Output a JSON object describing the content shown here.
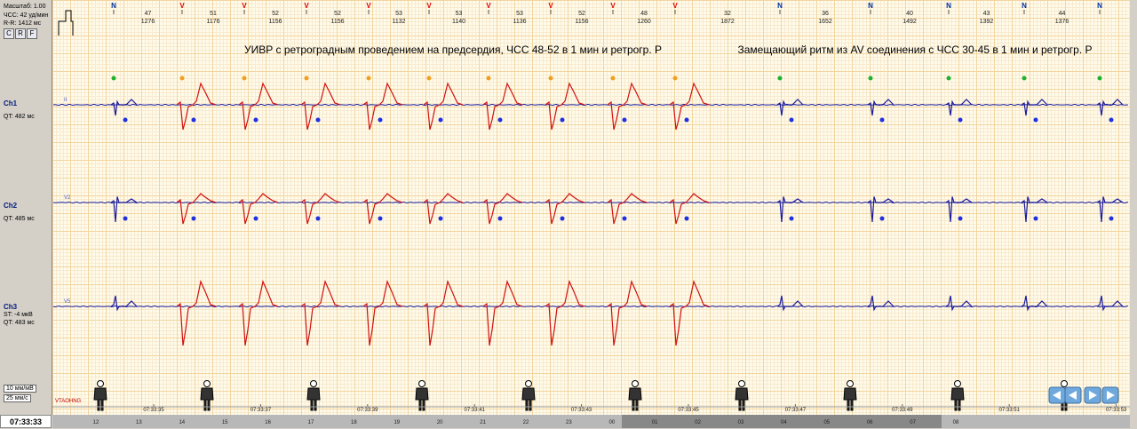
{
  "left_panel": {
    "scale": "Масштаб: 1.00",
    "hr": "ЧСС: 42 уд/мин",
    "rr": "R-R: 1412 мс",
    "buttons": [
      "C",
      "R",
      "F"
    ],
    "channels": [
      {
        "name": "Ch1",
        "lines": [
          "QT: 482 мс"
        ]
      },
      {
        "name": "Ch2",
        "lines": [
          "QT: 485 мс"
        ]
      },
      {
        "name": "Ch3",
        "lines": [
          "ST: -4 мкВ",
          "QT: 483 мс"
        ]
      }
    ],
    "gain": "10 мм/мВ",
    "speed": "25 мм/с",
    "time": "07:33:33"
  },
  "beats": {
    "labels": [
      "N",
      "V",
      "V",
      "V",
      "V",
      "V",
      "V",
      "V",
      "V",
      "V",
      "N",
      "N",
      "N",
      "N",
      "N"
    ],
    "intervals": [
      {
        "hr": "47",
        "rr": "1276"
      },
      {
        "hr": "51",
        "rr": "1176"
      },
      {
        "hr": "52",
        "rr": "1156"
      },
      {
        "hr": "52",
        "rr": "1156"
      },
      {
        "hr": "53",
        "rr": "1132"
      },
      {
        "hr": "53",
        "rr": "1140"
      },
      {
        "hr": "53",
        "rr": "1136"
      },
      {
        "hr": "52",
        "rr": "1156"
      },
      {
        "hr": "48",
        "rr": "1260"
      },
      {
        "hr": "32",
        "rr": "1872"
      },
      {
        "hr": "36",
        "rr": "1652"
      },
      {
        "hr": "40",
        "rr": "1492"
      },
      {
        "hr": "43",
        "rr": "1392"
      },
      {
        "hr": "44",
        "rr": "1376"
      }
    ]
  },
  "annotations": [
    "УИВР с ретроградным проведением на предсердия, ЧСС 48-52 в 1 мин и ретрогр. Р",
    "Замещающий ритм из AV соединения с ЧСС 30-45 в 1 мин и ретрогр. Р"
  ],
  "leads": [
    "II",
    "V2",
    "V5"
  ],
  "position_label": "VTAOHNG",
  "time_ticks": [
    "07:33:35",
    "07:33:37",
    "07:33:39",
    "07:33:41",
    "07:33:43",
    "07:33:45",
    "07:33:47",
    "07:33:49",
    "07:33:51",
    "07:33:53"
  ],
  "hours": [
    "12",
    "13",
    "14",
    "15",
    "16",
    "17",
    "18",
    "19",
    "20",
    "21",
    "22",
    "23",
    "00",
    "01",
    "02",
    "03",
    "04",
    "05",
    "06",
    "07",
    "08"
  ]
}
